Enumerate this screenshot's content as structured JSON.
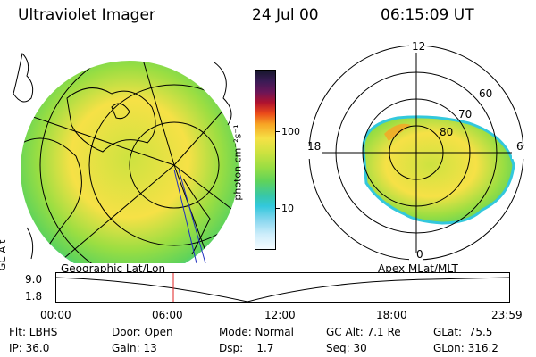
{
  "header": {
    "title": "Ultraviolet Imager",
    "date": "24 Jul 00",
    "time": "06:15:09 UT"
  },
  "colorbar": {
    "unit_label": "photon cm⁻²s⁻¹",
    "tick_100": "100",
    "tick_10": "10"
  },
  "polar": {
    "labels": {
      "top": "12",
      "left": "18",
      "right": "6",
      "bottom": "0",
      "r60": "60",
      "r70": "70",
      "r80": "80"
    }
  },
  "map_labels": {
    "left": "Geographic Lat/Lon",
    "right": "Apex MLat/MLT"
  },
  "timeline": {
    "y_label": "GC Alt",
    "y_max": "9.0",
    "y_min": "1.8",
    "x_ticks": [
      "00:00",
      "06:00",
      "12:00",
      "18:00",
      "23:59"
    ],
    "marker_time": "06:15"
  },
  "footer": {
    "row1": {
      "flt": "Flt: LBHS",
      "door": "Door: Open",
      "mode": "Mode: Normal",
      "gcalt": "GC Alt: 7.1 Re",
      "glat": "GLat:  75.5"
    },
    "row2": {
      "ip": "IP: 36.0",
      "gain": "Gain: 13",
      "dsp": "Dsp:    1.7",
      "seq": "Seq: 30",
      "glon": "GLon: 316.2"
    }
  },
  "colors": {
    "marker": "#e02020",
    "grid": "#000000",
    "aurora_low": "#9bde42",
    "aurora_mid": "#f6e146",
    "aurora_high": "#f7a424",
    "cyan_edge": "#33c8dc"
  }
}
